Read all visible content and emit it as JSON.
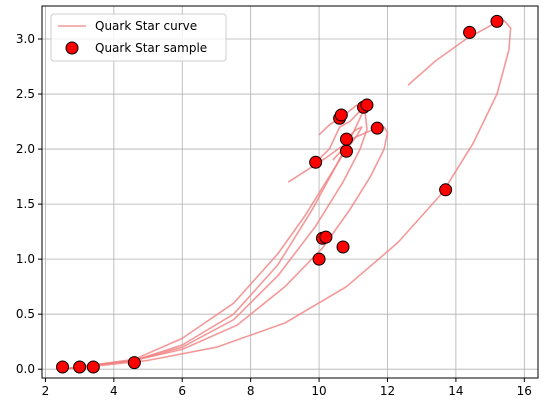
{
  "chart_data": {
    "type": "scatter",
    "title": "",
    "xlabel": "",
    "ylabel": "",
    "xlim": [
      1.9,
      16.4
    ],
    "ylim": [
      -0.08,
      3.3
    ],
    "xticks": [
      2,
      4,
      6,
      8,
      10,
      12,
      14,
      16
    ],
    "yticks": [
      0.0,
      0.5,
      1.0,
      1.5,
      2.0,
      2.5,
      3.0
    ],
    "xtick_labels": [
      "2",
      "4",
      "6",
      "8",
      "10",
      "12",
      "14",
      "16"
    ],
    "ytick_labels": [
      "0.0",
      "0.5",
      "1.0",
      "1.5",
      "2.0",
      "2.5",
      "3.0"
    ],
    "grid": true,
    "legend_position": "top-left",
    "legend": {
      "curve_label": "Quark Star curve",
      "sample_label": "Quark Star sample"
    },
    "colors": {
      "curve": "#f08080",
      "marker_fill": "#ff0000",
      "marker_edge": "#000000"
    },
    "curves": [
      {
        "points": [
          [
            2.5,
            0.0
          ],
          [
            3.2,
            0.03
          ],
          [
            4.6,
            0.08
          ],
          [
            6.0,
            0.2
          ],
          [
            7.5,
            0.45
          ],
          [
            8.8,
            0.85
          ],
          [
            9.9,
            1.3
          ],
          [
            10.7,
            1.7
          ],
          [
            11.2,
            2.0
          ],
          [
            11.4,
            2.18
          ],
          [
            11.35,
            2.32
          ],
          [
            11.1,
            2.4
          ],
          [
            10.7,
            2.3
          ],
          [
            10.3,
            2.22
          ],
          [
            10.0,
            2.13
          ]
        ]
      },
      {
        "points": [
          [
            2.5,
            0.0
          ],
          [
            3.2,
            0.03
          ],
          [
            4.6,
            0.08
          ],
          [
            6.0,
            0.22
          ],
          [
            7.5,
            0.5
          ],
          [
            8.8,
            0.95
          ],
          [
            9.8,
            1.45
          ],
          [
            10.5,
            1.85
          ],
          [
            11.0,
            2.15
          ],
          [
            11.3,
            2.35
          ],
          [
            11.45,
            2.45
          ],
          [
            11.3,
            2.38
          ],
          [
            10.9,
            2.25
          ],
          [
            10.6,
            2.2
          ],
          [
            10.3,
            2.0
          ],
          [
            9.9,
            1.88
          ]
        ]
      },
      {
        "points": [
          [
            2.5,
            0.0
          ],
          [
            3.2,
            0.03
          ],
          [
            4.6,
            0.09
          ],
          [
            6.0,
            0.28
          ],
          [
            7.5,
            0.6
          ],
          [
            8.8,
            1.05
          ],
          [
            9.6,
            1.4
          ],
          [
            10.2,
            1.7
          ],
          [
            10.7,
            1.95
          ],
          [
            11.1,
            2.12
          ],
          [
            11.25,
            2.2
          ],
          [
            11.1,
            2.18
          ],
          [
            10.8,
            2.1
          ],
          [
            10.7,
            2.0
          ],
          [
            10.4,
            1.9
          ]
        ]
      },
      {
        "points": [
          [
            2.5,
            0.0
          ],
          [
            3.2,
            0.03
          ],
          [
            4.6,
            0.08
          ],
          [
            6.0,
            0.18
          ],
          [
            7.6,
            0.4
          ],
          [
            9.0,
            0.75
          ],
          [
            10.1,
            1.1
          ],
          [
            10.9,
            1.45
          ],
          [
            11.5,
            1.75
          ],
          [
            11.9,
            2.0
          ],
          [
            12.0,
            2.15
          ],
          [
            11.9,
            2.2
          ],
          [
            11.6,
            2.18
          ],
          [
            11.0,
            2.1
          ],
          [
            10.2,
            1.92
          ],
          [
            9.1,
            1.7
          ]
        ]
      },
      {
        "points": [
          [
            2.5,
            0.0
          ],
          [
            3.5,
            0.03
          ],
          [
            5.0,
            0.08
          ],
          [
            7.0,
            0.2
          ],
          [
            9.0,
            0.42
          ],
          [
            10.8,
            0.75
          ],
          [
            12.3,
            1.15
          ],
          [
            13.6,
            1.6
          ],
          [
            14.5,
            2.05
          ],
          [
            15.2,
            2.5
          ],
          [
            15.55,
            2.9
          ],
          [
            15.6,
            3.1
          ],
          [
            15.4,
            3.17
          ],
          [
            15.0,
            3.12
          ],
          [
            14.3,
            3.0
          ],
          [
            13.4,
            2.8
          ],
          [
            12.6,
            2.58
          ]
        ]
      }
    ],
    "samples": [
      {
        "x": 2.5,
        "y": 0.02
      },
      {
        "x": 3.0,
        "y": 0.02
      },
      {
        "x": 3.4,
        "y": 0.02
      },
      {
        "x": 4.6,
        "y": 0.06
      },
      {
        "x": 10.0,
        "y": 1.0
      },
      {
        "x": 10.1,
        "y": 1.19
      },
      {
        "x": 10.2,
        "y": 1.2
      },
      {
        "x": 10.7,
        "y": 1.11
      },
      {
        "x": 9.9,
        "y": 1.88
      },
      {
        "x": 10.8,
        "y": 1.98
      },
      {
        "x": 10.8,
        "y": 2.09
      },
      {
        "x": 10.6,
        "y": 2.28
      },
      {
        "x": 10.65,
        "y": 2.31
      },
      {
        "x": 11.3,
        "y": 2.38
      },
      {
        "x": 11.4,
        "y": 2.4
      },
      {
        "x": 11.7,
        "y": 2.19
      },
      {
        "x": 13.7,
        "y": 1.63
      },
      {
        "x": 14.4,
        "y": 3.06
      },
      {
        "x": 15.2,
        "y": 3.16
      }
    ]
  }
}
